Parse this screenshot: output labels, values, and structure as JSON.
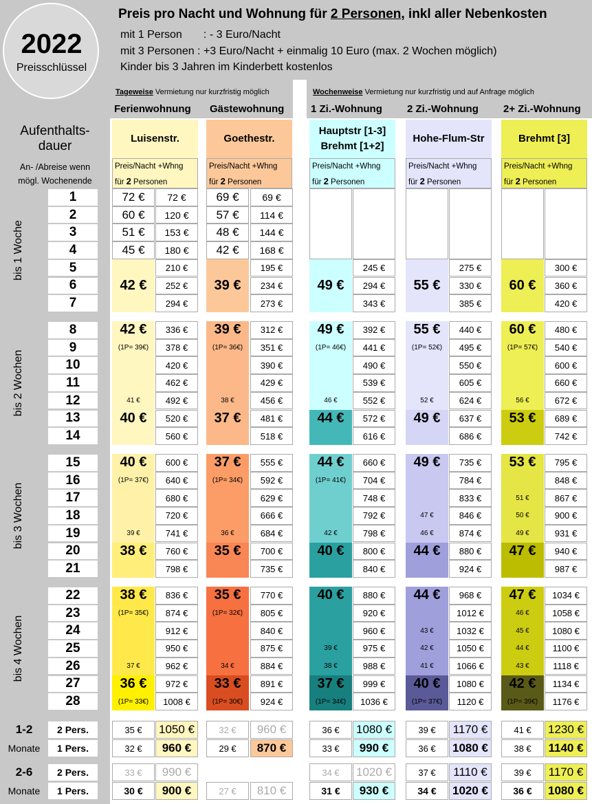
{
  "header": {
    "year": "2022",
    "key_label": "Preisschlüssel",
    "title_prefix": "Preis pro Nacht und Wohnung für ",
    "title_underlined": "2 Personen",
    "title_suffix": ", inkl aller Nebenkosten",
    "line1": "mit 1 Person       : - 3 Euro/Nacht",
    "line2": "mit 3 Personen : +3 Euro/Nacht + einmalig 10 Euro (max. 2 Wochen möglich)",
    "line3": "Kinder bis 3 Jahren im Kinderbett kostenlos"
  },
  "tag_group": {
    "bold": "Tageweise",
    "rest": " Vermietung nur kurzfristig möglich"
  },
  "woch_group": {
    "bold": "Wochenweise",
    "rest": " Vermietung nur kurzfristig und auf Anfrage möglich"
  },
  "type_headers": [
    "Ferienwohnung",
    "Gästewohnung",
    "1 Zi.-Wohnung",
    "2 Zi.-Wohnung",
    "2+ Zi.-Wohnung"
  ],
  "aufenthalt": {
    "l1": "Aufenthalts-",
    "l2": "dauer",
    "s1": "An- /Abreise wenn",
    "s2": "mögl. Wochenende"
  },
  "blocks": [
    "bis 1 Woche",
    "bis 2 Wochen",
    "bis 3 Wochen",
    "bis 4 Wochen"
  ],
  "colors": {
    "luisen": "#fff6c0",
    "goethe": "#fcc89a",
    "haupt": "#ccffff",
    "hohe": "#e4e4fb",
    "brehmt": "#eeee55"
  },
  "apartments": [
    {
      "name": "Luisenstr.",
      "pn1": "Preis/Nacht +Whng",
      "pn2a": "für ",
      "pn2b": "2",
      "pn2c": " Personen"
    },
    {
      "name": "Goethestr.",
      "pn1": "Preis/Nacht +Whng",
      "pn2a": "für ",
      "pn2b": "2",
      "pn2c": " Personen"
    },
    {
      "name": "Hauptstr [1-3] Brehmt [1+2]",
      "pn1": "Preis/Nacht +Whng",
      "pn2a": "für ",
      "pn2b": "2",
      "pn2c": " Personen"
    },
    {
      "name": "Hohe-Flum-Str",
      "pn1": "Preis/Nacht +Whng",
      "pn2a": "für ",
      "pn2b": "2",
      "pn2c": " Personen"
    },
    {
      "name": "Brehmt [3]",
      "pn1": "Preis/Nacht +Whng",
      "pn2a": "für ",
      "pn2b": "2",
      "pn2c": " Personen"
    }
  ],
  "days": [
    "1",
    "2",
    "3",
    "4",
    "5",
    "6",
    "7",
    "8",
    "9",
    "10",
    "11",
    "12",
    "13",
    "14",
    "15",
    "16",
    "17",
    "18",
    "19",
    "20",
    "21",
    "22",
    "23",
    "24",
    "25",
    "26",
    "27",
    "28"
  ],
  "totals": [
    [
      "72 €",
      "210 €",
      "252 €",
      "294 €",
      "336 €",
      "378 €",
      "420 €",
      "462 €",
      "492 €",
      "520 €",
      "560 €",
      "600 €",
      "640 €",
      "680 €",
      "720 €",
      "741 €",
      "760 €",
      "798 €",
      "836 €",
      "874 €",
      "912 €",
      "950 €",
      "962 €",
      "972 €",
      "1008 €"
    ],
    [
      "69 €",
      "195 €",
      "234 €",
      "273 €",
      "312 €",
      "351 €",
      "390 €",
      "429 €",
      "456 €",
      "481 €",
      "518 €",
      "555 €",
      "592 €",
      "629 €",
      "666 €",
      "684 €",
      "700 €",
      "735 €",
      "770 €",
      "805 €",
      "840 €",
      "875 €",
      "884 €",
      "891 €",
      "924 €"
    ],
    [
      "245 €",
      "294 €",
      "343 €",
      "392 €",
      "441 €",
      "490 €",
      "539 €",
      "552 €",
      "572 €",
      "616 €",
      "660 €",
      "704 €",
      "748 €",
      "792 €",
      "798 €",
      "800 €",
      "840 €",
      "880 €",
      "920 €",
      "960 €",
      "975 €",
      "988 €",
      "999 €",
      "1036 €"
    ],
    [
      "275 €",
      "330 €",
      "385 €",
      "440 €",
      "495 €",
      "550 €",
      "605 €",
      "624 €",
      "637 €",
      "686 €",
      "735 €",
      "784 €",
      "833 €",
      "846 €",
      "874 €",
      "880 €",
      "924 €",
      "968 €",
      "1012 €",
      "1032 €",
      "1050 €",
      "1066 €",
      "1080 €",
      "1120 €"
    ],
    [
      "300 €",
      "360 €",
      "420 €",
      "480 €",
      "540 €",
      "600 €",
      "660 €",
      "672 €",
      "689 €",
      "742 €",
      "795 €",
      "848 €",
      "867 €",
      "900 €",
      "931 €",
      "940 €",
      "987 €",
      "1034 €",
      "1058 €",
      "1080 €",
      "1100 €",
      "1118 €",
      "1134 €",
      "1176 €"
    ]
  ],
  "first_days": {
    "luisen": [
      [
        "72 €",
        "72 €"
      ],
      [
        "60 €",
        "120 €"
      ],
      [
        "51 €",
        "153 €"
      ],
      [
        "45 €",
        "180 €"
      ]
    ],
    "goethe": [
      [
        "69 €",
        "69 €"
      ],
      [
        "57 €",
        "114 €"
      ],
      [
        "48 €",
        "144 €"
      ],
      [
        "42 €",
        "168 €"
      ]
    ]
  },
  "nightly": {
    "luisen": [
      "42 €",
      "42 €",
      "(1P= 39€)",
      "41 €",
      "40 €",
      "40 €",
      "(1P= 37€)",
      "39 €",
      "38 €",
      "38 €",
      "(1P= 35€)",
      "37 €",
      "36 €",
      "(1P= 33€)"
    ],
    "goethe": [
      "39 €",
      "39 €",
      "(1P= 36€)",
      "38 €",
      "37 €",
      "37 €",
      "(1P= 34€)",
      "36 €",
      "35 €",
      "35 €",
      "(1P= 32€)",
      "34 €",
      "33 €",
      "(1P= 30€)"
    ],
    "haupt": [
      "49 €",
      "49 €",
      "(1P= 46€)",
      "46 €",
      "44 €",
      "44 €",
      "(1P= 41€)",
      "42 €",
      "40 €",
      "40 €",
      "39 €",
      "38 €",
      "37 €",
      "(1P= 34€)"
    ],
    "hohe": [
      "55 €",
      "55 €",
      "(1P= 52€)",
      "52 €",
      "49 €",
      "49 €",
      "47 €",
      "46 €",
      "44 €",
      "44 €",
      "43 €",
      "42 €",
      "41 €",
      "40 €",
      "(1P= 37€)"
    ],
    "brehmt": [
      "60 €",
      "60 €",
      "(1P= 57€)",
      "56 €",
      "53 €",
      "53 €",
      "51 €",
      "50 €",
      "49 €",
      "47 €",
      "47 €",
      "46 €",
      "45 €",
      "44 €",
      "43 €",
      "42 €",
      "(1P= 39€)"
    ]
  },
  "months": {
    "m12": "1-2",
    "m26": "2-6",
    "monate": "Monate",
    "p2": "2 Pers.",
    "p1": "1 Pers.",
    "r12_2": [
      [
        "35 €",
        "1050 €"
      ],
      [
        "32 €",
        "960 €"
      ],
      [
        "36 €",
        "1080 €"
      ],
      [
        "39 €",
        "1170 €"
      ],
      [
        "41 €",
        "1230 €"
      ]
    ],
    "r12_1": [
      [
        "32 €",
        "960 €"
      ],
      [
        "29 €",
        "870 €"
      ],
      [
        "33 €",
        "990 €"
      ],
      [
        "36 €",
        "1080 €"
      ],
      [
        "38 €",
        "1140 €"
      ]
    ],
    "r26_2": [
      [
        "33 €",
        "990 €"
      ],
      [
        "34 €",
        "1020 €"
      ],
      [
        "37 €",
        "1110 €"
      ],
      [
        "39 €",
        "1170 €"
      ]
    ],
    "r26_1": [
      [
        "30 €",
        "900 €"
      ],
      [
        "27 €",
        "810 €"
      ],
      [
        "31 €",
        "930 €"
      ],
      [
        "34 €",
        "1020 €"
      ],
      [
        "36 €",
        "1080 €"
      ]
    ]
  }
}
